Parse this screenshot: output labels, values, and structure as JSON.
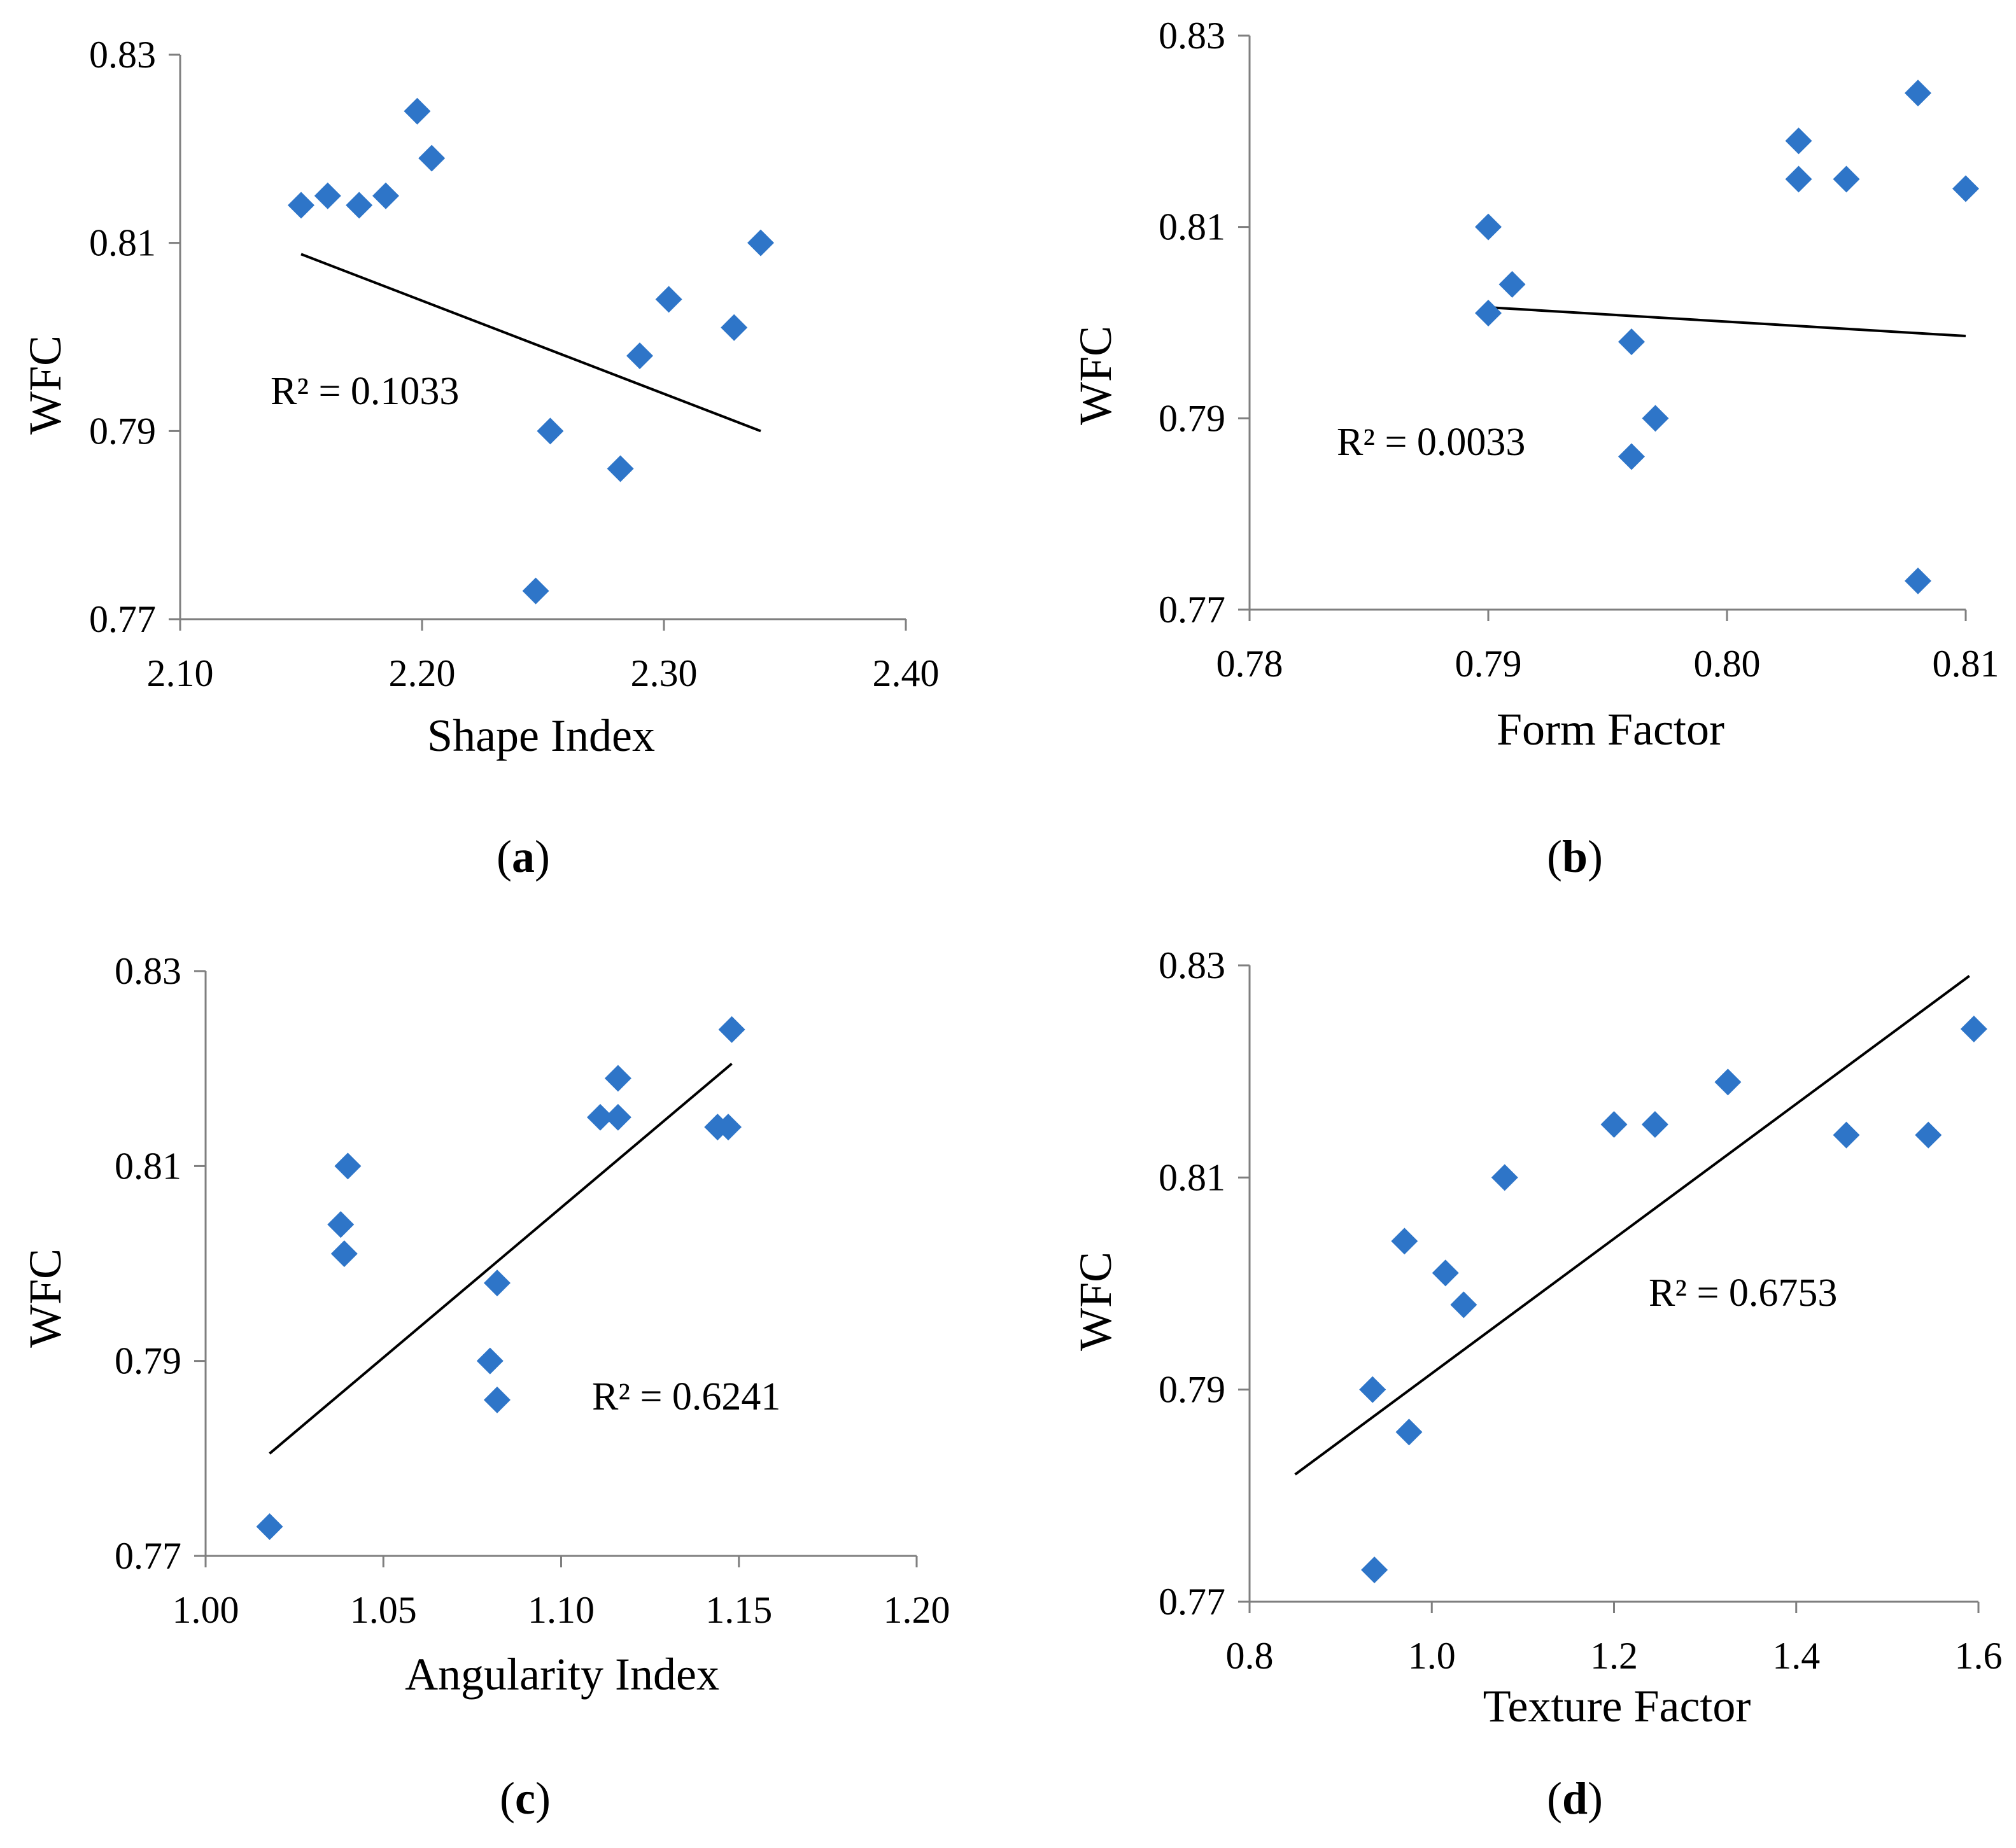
{
  "chart_data": [
    {
      "type": "scatter",
      "caption": "a",
      "xlabel": "Shape Index",
      "ylabel": "WFC",
      "xlim": [
        2.1,
        2.4
      ],
      "ylim": [
        0.77,
        0.83
      ],
      "xticks": [
        "2.10",
        "2.20",
        "2.30",
        "2.40"
      ],
      "yticks": [
        "0.77",
        "0.79",
        "0.81",
        "0.83"
      ],
      "points": [
        [
          2.15,
          0.814
        ],
        [
          2.161,
          0.815
        ],
        [
          2.174,
          0.814
        ],
        [
          2.185,
          0.815
        ],
        [
          2.198,
          0.824
        ],
        [
          2.204,
          0.819
        ],
        [
          2.247,
          0.773
        ],
        [
          2.253,
          0.79
        ],
        [
          2.282,
          0.786
        ],
        [
          2.29,
          0.798
        ],
        [
          2.302,
          0.804
        ],
        [
          2.329,
          0.801
        ],
        [
          2.34,
          0.81
        ]
      ],
      "trendline": [
        [
          2.15,
          0.8088
        ],
        [
          2.34,
          0.79
        ]
      ],
      "annotation": "R² = 0.1033"
    },
    {
      "type": "scatter",
      "caption": "b",
      "xlabel": "Form Factor",
      "ylabel": "WFC",
      "xlim": [
        0.78,
        0.81
      ],
      "ylim": [
        0.77,
        0.83
      ],
      "xticks": [
        "0.78",
        "0.79",
        "0.80",
        "0.81"
      ],
      "yticks": [
        "0.77",
        "0.79",
        "0.81",
        "0.83"
      ],
      "points": [
        [
          0.79,
          0.81
        ],
        [
          0.79,
          0.801
        ],
        [
          0.791,
          0.804
        ],
        [
          0.796,
          0.798
        ],
        [
          0.796,
          0.786
        ],
        [
          0.797,
          0.79
        ],
        [
          0.803,
          0.819
        ],
        [
          0.803,
          0.815
        ],
        [
          0.805,
          0.815
        ],
        [
          0.808,
          0.824
        ],
        [
          0.808,
          0.773
        ],
        [
          0.81,
          0.814
        ]
      ],
      "trendline": [
        [
          0.79,
          0.8016
        ],
        [
          0.81,
          0.7986
        ]
      ],
      "annotation": "R² = 0.0033"
    },
    {
      "type": "scatter",
      "caption": "c",
      "xlabel": "Angularity Index",
      "ylabel": "WFC",
      "xlim": [
        1.0,
        1.2
      ],
      "ylim": [
        0.77,
        0.83
      ],
      "xticks": [
        "1.00",
        "1.05",
        "1.10",
        "1.15",
        "1.20"
      ],
      "yticks": [
        "0.77",
        "0.79",
        "0.81",
        "0.83"
      ],
      "points": [
        [
          1.018,
          0.773
        ],
        [
          1.038,
          0.804
        ],
        [
          1.039,
          0.801
        ],
        [
          1.04,
          0.81
        ],
        [
          1.08,
          0.79
        ],
        [
          1.082,
          0.786
        ],
        [
          1.082,
          0.798
        ],
        [
          1.111,
          0.815
        ],
        [
          1.116,
          0.815
        ],
        [
          1.116,
          0.819
        ],
        [
          1.144,
          0.814
        ],
        [
          1.147,
          0.814
        ],
        [
          1.148,
          0.824
        ]
      ],
      "trendline": [
        [
          1.018,
          0.7805
        ],
        [
          1.148,
          0.8205
        ]
      ],
      "annotation": "R² = 0.6241"
    },
    {
      "type": "scatter",
      "caption": "d",
      "xlabel": "Texture Factor",
      "ylabel": "WFC",
      "xlim": [
        0.8,
        1.6
      ],
      "ylim": [
        0.77,
        0.83
      ],
      "xticks": [
        "0.8",
        "1.0",
        "1.2",
        "1.4",
        "1.6"
      ],
      "yticks": [
        "0.77",
        "0.79",
        "0.81",
        "0.83"
      ],
      "points": [
        [
          0.935,
          0.79
        ],
        [
          0.937,
          0.773
        ],
        [
          0.97,
          0.804
        ],
        [
          0.975,
          0.786
        ],
        [
          1.015,
          0.801
        ],
        [
          1.035,
          0.798
        ],
        [
          1.08,
          0.81
        ],
        [
          1.2,
          0.815
        ],
        [
          1.245,
          0.815
        ],
        [
          1.325,
          0.819
        ],
        [
          1.455,
          0.814
        ],
        [
          1.545,
          0.814
        ],
        [
          1.595,
          0.824
        ]
      ],
      "trendline": [
        [
          0.85,
          0.782
        ],
        [
          1.59,
          0.829
        ]
      ],
      "annotation": "R² = 0.6753"
    }
  ]
}
